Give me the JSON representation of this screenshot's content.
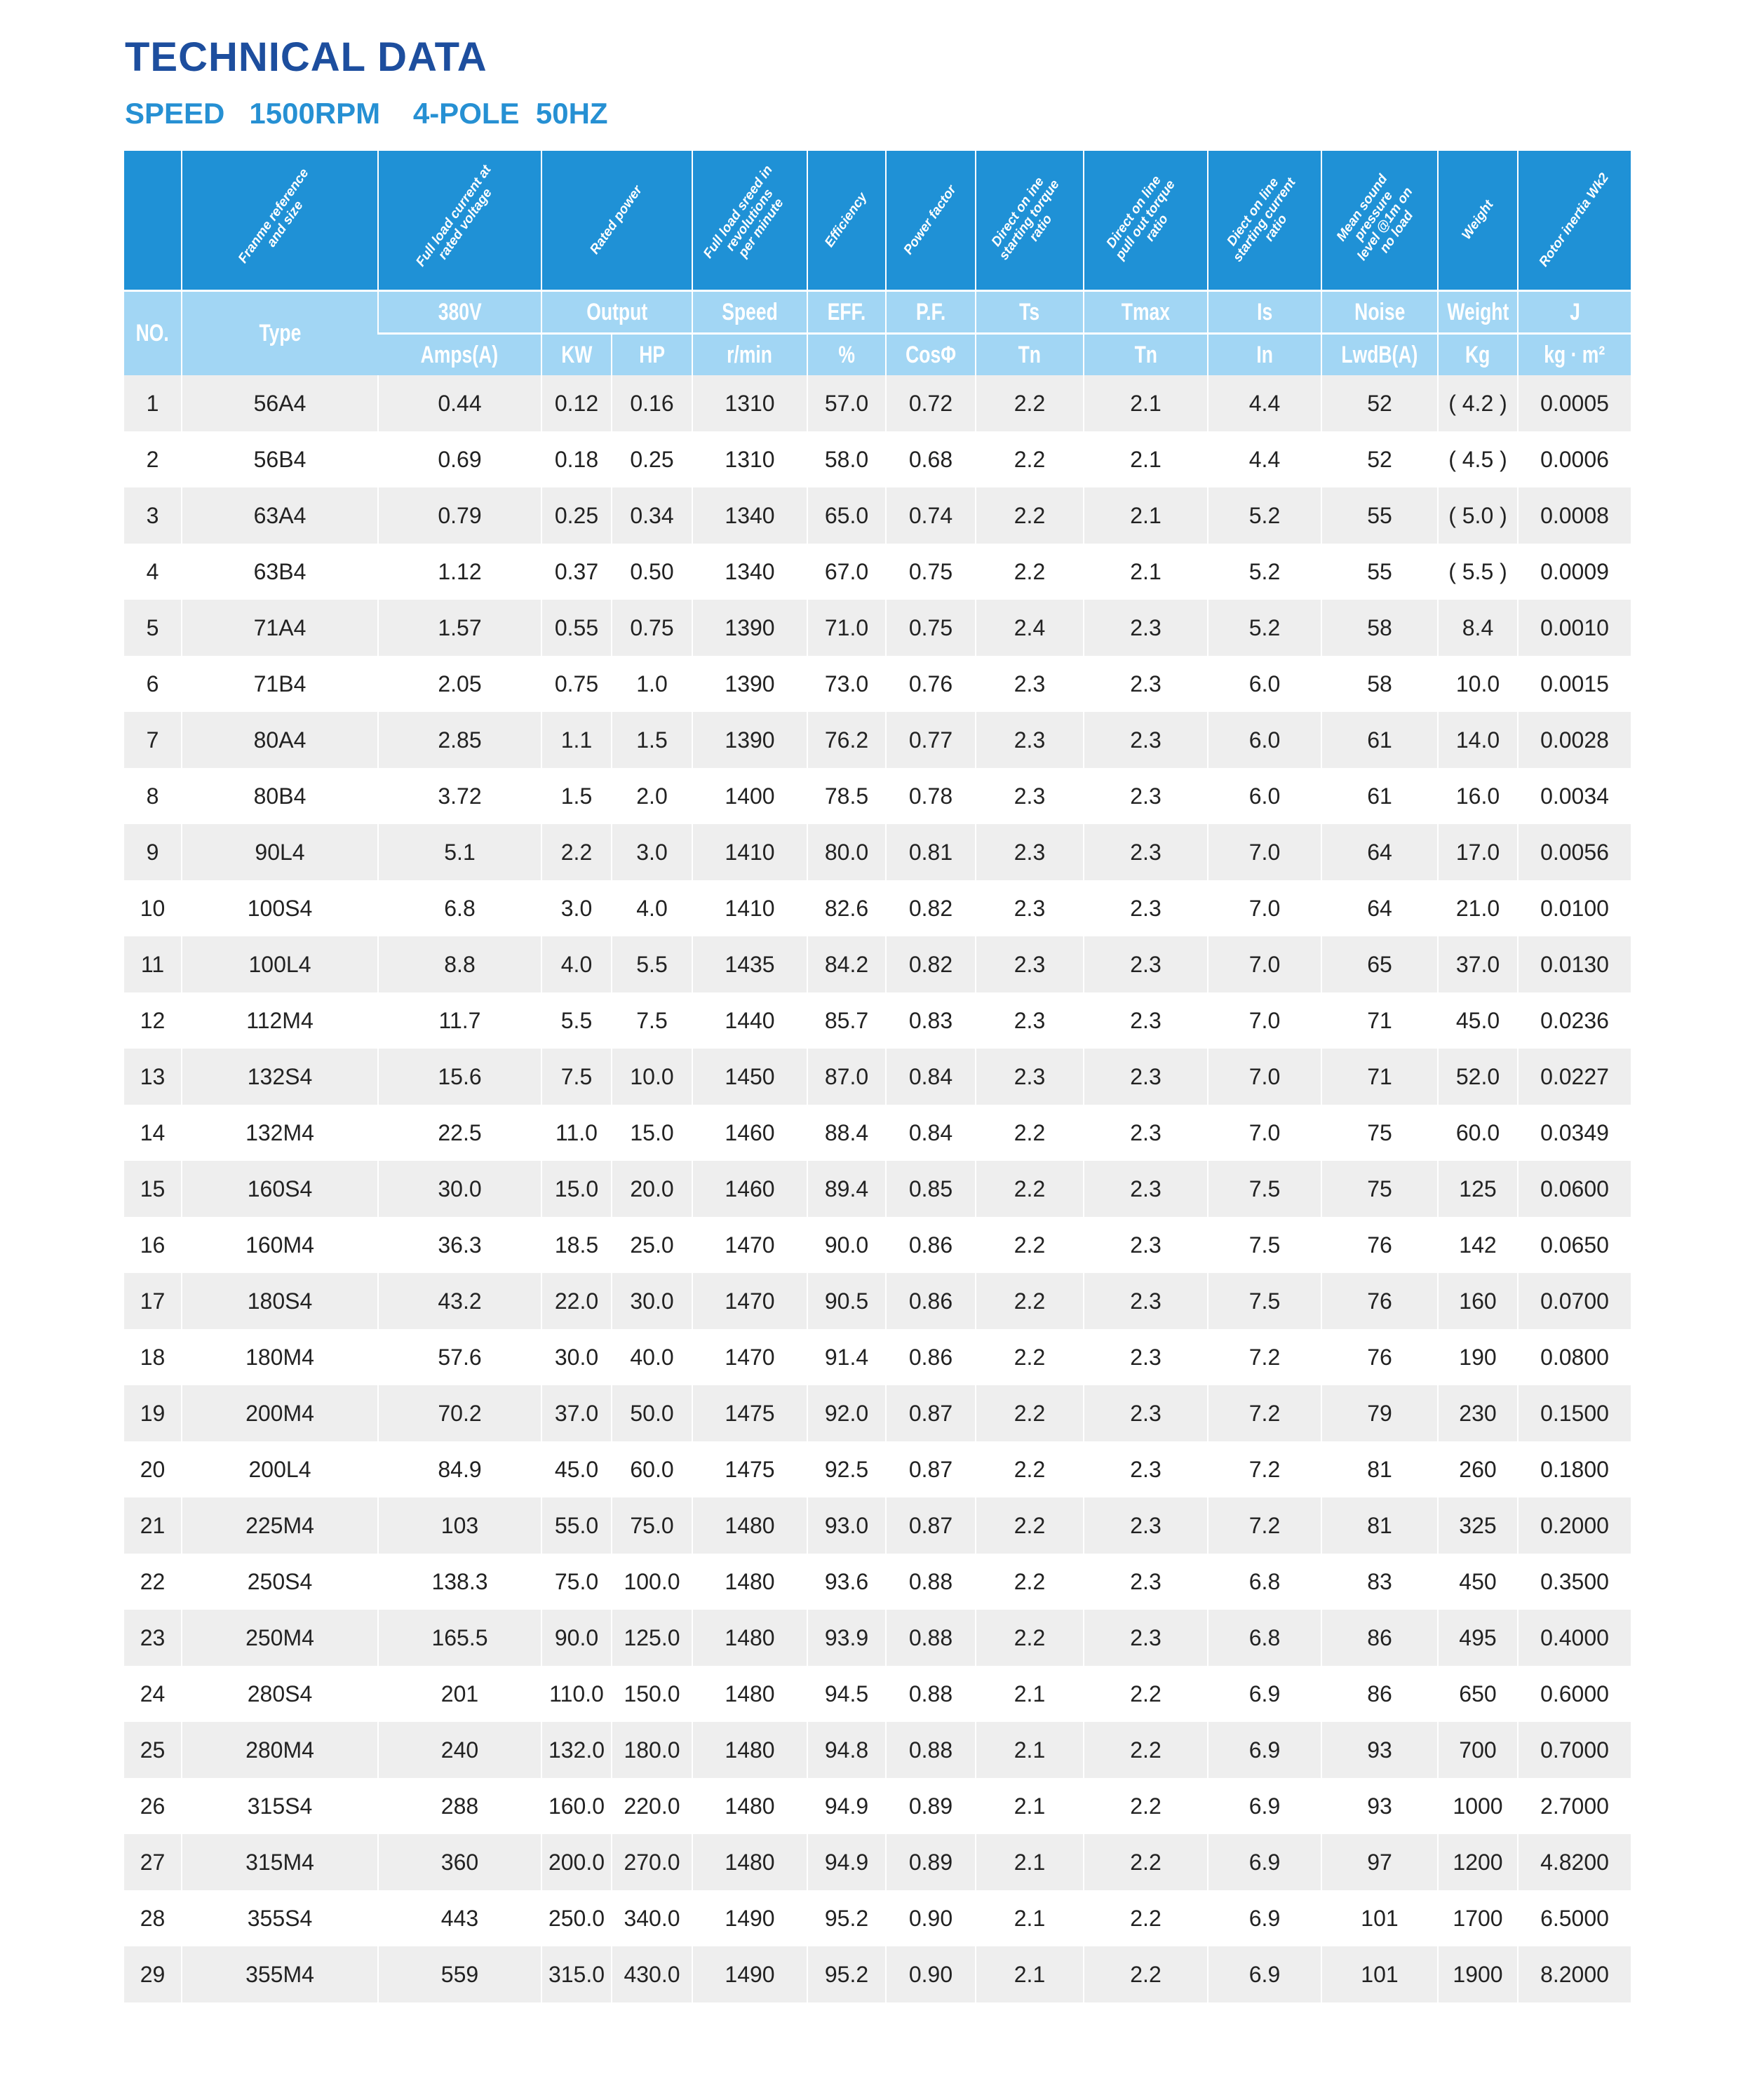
{
  "title": "TECHNICAL DATA",
  "subtitle": "SPEED   1500RPM    4-POLE  50HZ",
  "colors": {
    "title": "#1d4e9e",
    "subtitle": "#2690d3",
    "header_bg": "#1f91d6",
    "subheader_bg": "#a2d6f4",
    "row_alt": "#eeeeee"
  },
  "header": {
    "descriptions": [
      "",
      "Franme reference\nand size",
      "Full load current at\nrated voltage",
      "Rated power",
      "Full load sreed in\nrevolutions\nper minute",
      "Efficiency",
      "Power factor",
      "Direct on ine\nstarting torque\nratio",
      "Direct on line\npull out torque\nratio",
      "Diect on line\nstarting current\nratio",
      "Mean sound\npressure\nlevel @1m on\nno load",
      "Weight",
      "Rotor inertia Wk2"
    ],
    "row1": [
      "NO.",
      "Type",
      "380V",
      "Output",
      "Speed",
      "EFF.",
      "P.F.",
      "Ts",
      "Tmax",
      "Is",
      "Noise",
      "Weight",
      "J"
    ],
    "row2": [
      "Amps(A)",
      "KW",
      "HP",
      "r/min",
      "%",
      "CosΦ",
      "Tn",
      "Tn",
      "In",
      "LwdB(A)",
      "Kg",
      "kg · m²"
    ]
  },
  "rows": [
    [
      "1",
      "56A4",
      "0.44",
      "0.12",
      "0.16",
      "1310",
      "57.0",
      "0.72",
      "2.2",
      "2.1",
      "4.4",
      "52",
      "( 4.2 )",
      "0.0005"
    ],
    [
      "2",
      "56B4",
      "0.69",
      "0.18",
      "0.25",
      "1310",
      "58.0",
      "0.68",
      "2.2",
      "2.1",
      "4.4",
      "52",
      "( 4.5 )",
      "0.0006"
    ],
    [
      "3",
      "63A4",
      "0.79",
      "0.25",
      "0.34",
      "1340",
      "65.0",
      "0.74",
      "2.2",
      "2.1",
      "5.2",
      "55",
      "( 5.0 )",
      "0.0008"
    ],
    [
      "4",
      "63B4",
      "1.12",
      "0.37",
      "0.50",
      "1340",
      "67.0",
      "0.75",
      "2.2",
      "2.1",
      "5.2",
      "55",
      "( 5.5 )",
      "0.0009"
    ],
    [
      "5",
      "71A4",
      "1.57",
      "0.55",
      "0.75",
      "1390",
      "71.0",
      "0.75",
      "2.4",
      "2.3",
      "5.2",
      "58",
      "8.4",
      "0.0010"
    ],
    [
      "6",
      "71B4",
      "2.05",
      "0.75",
      "1.0",
      "1390",
      "73.0",
      "0.76",
      "2.3",
      "2.3",
      "6.0",
      "58",
      "10.0",
      "0.0015"
    ],
    [
      "7",
      "80A4",
      "2.85",
      "1.1",
      "1.5",
      "1390",
      "76.2",
      "0.77",
      "2.3",
      "2.3",
      "6.0",
      "61",
      "14.0",
      "0.0028"
    ],
    [
      "8",
      "80B4",
      "3.72",
      "1.5",
      "2.0",
      "1400",
      "78.5",
      "0.78",
      "2.3",
      "2.3",
      "6.0",
      "61",
      "16.0",
      "0.0034"
    ],
    [
      "9",
      "90L4",
      "5.1",
      "2.2",
      "3.0",
      "1410",
      "80.0",
      "0.81",
      "2.3",
      "2.3",
      "7.0",
      "64",
      "17.0",
      "0.0056"
    ],
    [
      "10",
      "100S4",
      "6.8",
      "3.0",
      "4.0",
      "1410",
      "82.6",
      "0.82",
      "2.3",
      "2.3",
      "7.0",
      "64",
      "21.0",
      "0.0100"
    ],
    [
      "11",
      "100L4",
      "8.8",
      "4.0",
      "5.5",
      "1435",
      "84.2",
      "0.82",
      "2.3",
      "2.3",
      "7.0",
      "65",
      "37.0",
      "0.0130"
    ],
    [
      "12",
      "112M4",
      "11.7",
      "5.5",
      "7.5",
      "1440",
      "85.7",
      "0.83",
      "2.3",
      "2.3",
      "7.0",
      "71",
      "45.0",
      "0.0236"
    ],
    [
      "13",
      "132S4",
      "15.6",
      "7.5",
      "10.0",
      "1450",
      "87.0",
      "0.84",
      "2.3",
      "2.3",
      "7.0",
      "71",
      "52.0",
      "0.0227"
    ],
    [
      "14",
      "132M4",
      "22.5",
      "11.0",
      "15.0",
      "1460",
      "88.4",
      "0.84",
      "2.2",
      "2.3",
      "7.0",
      "75",
      "60.0",
      "0.0349"
    ],
    [
      "15",
      "160S4",
      "30.0",
      "15.0",
      "20.0",
      "1460",
      "89.4",
      "0.85",
      "2.2",
      "2.3",
      "7.5",
      "75",
      "125",
      "0.0600"
    ],
    [
      "16",
      "160M4",
      "36.3",
      "18.5",
      "25.0",
      "1470",
      "90.0",
      "0.86",
      "2.2",
      "2.3",
      "7.5",
      "76",
      "142",
      "0.0650"
    ],
    [
      "17",
      "180S4",
      "43.2",
      "22.0",
      "30.0",
      "1470",
      "90.5",
      "0.86",
      "2.2",
      "2.3",
      "7.5",
      "76",
      "160",
      "0.0700"
    ],
    [
      "18",
      "180M4",
      "57.6",
      "30.0",
      "40.0",
      "1470",
      "91.4",
      "0.86",
      "2.2",
      "2.3",
      "7.2",
      "76",
      "190",
      "0.0800"
    ],
    [
      "19",
      "200M4",
      "70.2",
      "37.0",
      "50.0",
      "1475",
      "92.0",
      "0.87",
      "2.2",
      "2.3",
      "7.2",
      "79",
      "230",
      "0.1500"
    ],
    [
      "20",
      "200L4",
      "84.9",
      "45.0",
      "60.0",
      "1475",
      "92.5",
      "0.87",
      "2.2",
      "2.3",
      "7.2",
      "81",
      "260",
      "0.1800"
    ],
    [
      "21",
      "225M4",
      "103",
      "55.0",
      "75.0",
      "1480",
      "93.0",
      "0.87",
      "2.2",
      "2.3",
      "7.2",
      "81",
      "325",
      "0.2000"
    ],
    [
      "22",
      "250S4",
      "138.3",
      "75.0",
      "100.0",
      "1480",
      "93.6",
      "0.88",
      "2.2",
      "2.3",
      "6.8",
      "83",
      "450",
      "0.3500"
    ],
    [
      "23",
      "250M4",
      "165.5",
      "90.0",
      "125.0",
      "1480",
      "93.9",
      "0.88",
      "2.2",
      "2.3",
      "6.8",
      "86",
      "495",
      "0.4000"
    ],
    [
      "24",
      "280S4",
      "201",
      "110.0",
      "150.0",
      "1480",
      "94.5",
      "0.88",
      "2.1",
      "2.2",
      "6.9",
      "86",
      "650",
      "0.6000"
    ],
    [
      "25",
      "280M4",
      "240",
      "132.0",
      "180.0",
      "1480",
      "94.8",
      "0.88",
      "2.1",
      "2.2",
      "6.9",
      "93",
      "700",
      "0.7000"
    ],
    [
      "26",
      "315S4",
      "288",
      "160.0",
      "220.0",
      "1480",
      "94.9",
      "0.89",
      "2.1",
      "2.2",
      "6.9",
      "93",
      "1000",
      "2.7000"
    ],
    [
      "27",
      "315M4",
      "360",
      "200.0",
      "270.0",
      "1480",
      "94.9",
      "0.89",
      "2.1",
      "2.2",
      "6.9",
      "97",
      "1200",
      "4.8200"
    ],
    [
      "28",
      "355S4",
      "443",
      "250.0",
      "340.0",
      "1490",
      "95.2",
      "0.90",
      "2.1",
      "2.2",
      "6.9",
      "101",
      "1700",
      "6.5000"
    ],
    [
      "29",
      "355M4",
      "559",
      "315.0",
      "430.0",
      "1490",
      "95.2",
      "0.90",
      "2.1",
      "2.2",
      "6.9",
      "101",
      "1900",
      "8.2000"
    ]
  ]
}
